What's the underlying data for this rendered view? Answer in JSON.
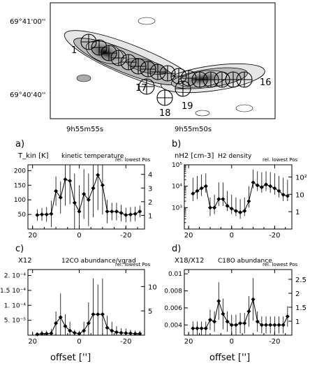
{
  "map": {
    "dec_labels": [
      "69°41'00''",
      "69°40'40''"
    ],
    "ra_labels": [
      "9h55m55s",
      "9h55m50s"
    ],
    "position_labels": [
      "1",
      "16",
      "17",
      "18",
      "19"
    ],
    "position_count": 19
  },
  "x_axis_title": "offset ['']",
  "chart_data": [
    {
      "id": "a",
      "type": "line",
      "panel_label": "a)",
      "ylabel": "T_kin [K]",
      "title": "kinetic temperature",
      "right_label": "rel. lowest Pos",
      "x": [
        18,
        16,
        14,
        12,
        10,
        8,
        6,
        4,
        2,
        0,
        -2,
        -4,
        -6,
        -8,
        -10,
        -12,
        -14,
        -16,
        -18,
        -20,
        -22,
        -24,
        -26
      ],
      "values": [
        48,
        50,
        50,
        52,
        130,
        108,
        170,
        165,
        90,
        60,
        120,
        100,
        140,
        185,
        150,
        60,
        60,
        60,
        55,
        48,
        50,
        52,
        60
      ],
      "errors": [
        20,
        22,
        25,
        45,
        50,
        55,
        90,
        80,
        100,
        90,
        85,
        90,
        100,
        120,
        100,
        40,
        30,
        30,
        28,
        25,
        25,
        25,
        20
      ],
      "xlim": [
        22,
        -28
      ],
      "ylim": [
        0,
        220
      ],
      "yticks": [
        50,
        100,
        150,
        200
      ],
      "xticks": [
        20,
        0,
        -20
      ],
      "right_ticks": [
        "1",
        "2",
        "3",
        "4"
      ]
    },
    {
      "id": "b",
      "type": "line",
      "panel_label": "b)",
      "ylabel": "nH2 [cm-3]",
      "title": "H2 density",
      "right_label": "rel. lowest Pos",
      "scale": "log",
      "x": [
        18,
        16,
        14,
        12,
        10,
        8,
        6,
        4,
        2,
        0,
        -2,
        -4,
        -6,
        -8,
        -10,
        -12,
        -14,
        -16,
        -18,
        -20,
        -22,
        -24,
        -26
      ],
      "values": [
        4500,
        6000,
        8000,
        10000,
        1000,
        1000,
        2500,
        2500,
        1200,
        900,
        700,
        600,
        700,
        2000,
        15000,
        11000,
        9000,
        12000,
        10000,
        8000,
        6000,
        4000,
        3500
      ],
      "err_lo": [
        2000,
        2500,
        3500,
        5000,
        400,
        500,
        1200,
        1200,
        700,
        500,
        400,
        300,
        400,
        1000,
        8000,
        6000,
        5000,
        6000,
        5000,
        4000,
        3000,
        2000,
        2000
      ],
      "err_hi": [
        25000,
        30000,
        35000,
        40000,
        3000,
        4000,
        15000,
        15000,
        6000,
        4000,
        3000,
        2500,
        3000,
        10000,
        60000,
        50000,
        45000,
        50000,
        45000,
        40000,
        30000,
        25000,
        20000
      ],
      "xlim": [
        22,
        -28
      ],
      "ylim": [
        100,
        100000
      ],
      "ytick_labels": [
        "10³",
        "10⁴",
        "10⁵"
      ],
      "xticks": [
        20,
        0,
        -20
      ],
      "right_ticks": [
        "1",
        "10",
        "10²"
      ]
    },
    {
      "id": "c",
      "type": "line",
      "panel_label": "c)",
      "ylabel": "X12",
      "title": "12CO abundance/vgrad",
      "right_label": "rel. lowest Pos",
      "x": [
        18,
        16,
        14,
        12,
        10,
        8,
        6,
        4,
        2,
        0,
        -2,
        -4,
        -6,
        -8,
        -10,
        -12,
        -14,
        -16,
        -18,
        -20,
        -22,
        -24,
        -26
      ],
      "values": [
        3e-06,
        5e-06,
        5e-06,
        6e-06,
        4e-05,
        6e-05,
        3e-05,
        1.5e-05,
        8e-06,
        5e-06,
        1.5e-05,
        4e-05,
        7e-05,
        7e-05,
        7e-05,
        2.5e-05,
        1.5e-05,
        1e-05,
        8e-06,
        7e-06,
        6e-06,
        5e-06,
        5e-06
      ],
      "errors": [
        5e-06,
        1e-05,
        1e-05,
        1.5e-05,
        4e-05,
        8e-05,
        4e-05,
        3e-05,
        1e-05,
        1e-05,
        3e-05,
        7e-05,
        0.00012,
        0.0001,
        0.00012,
        4e-05,
        3e-05,
        2e-05,
        1.5e-05,
        1.5e-05,
        1.2e-05,
        1e-05,
        1e-05
      ],
      "xlim": [
        22,
        -28
      ],
      "ylim": [
        0,
        0.00022
      ],
      "ytick_labels": [
        "5. 10⁻⁵",
        "1. 10⁻⁴",
        "1.5 10⁻⁴",
        "2. 10⁻⁴"
      ],
      "yticks": [
        5e-05,
        0.0001,
        0.00015,
        0.0002
      ],
      "xticks": [
        20,
        0,
        -20
      ],
      "right_ticks": [
        "5",
        "10"
      ]
    },
    {
      "id": "d",
      "type": "line",
      "panel_label": "d)",
      "ylabel": "X18/X12",
      "title": "C18O abundance",
      "right_label": "rel. lowest Pos",
      "x": [
        18,
        16,
        14,
        12,
        10,
        8,
        6,
        4,
        2,
        0,
        -2,
        -4,
        -6,
        -8,
        -10,
        -12,
        -14,
        -16,
        -18,
        -20,
        -22,
        -24,
        -26
      ],
      "values": [
        0.0036,
        0.0036,
        0.0036,
        0.0036,
        0.0046,
        0.0044,
        0.0068,
        0.0053,
        0.0044,
        0.004,
        0.004,
        0.0042,
        0.0042,
        0.0056,
        0.007,
        0.0044,
        0.004,
        0.004,
        0.004,
        0.004,
        0.004,
        0.004,
        0.005
      ],
      "errors": [
        0.0008,
        0.0008,
        0.0008,
        0.0008,
        0.0012,
        0.0012,
        0.0022,
        0.0018,
        0.0012,
        0.0012,
        0.0012,
        0.0012,
        0.0012,
        0.0018,
        0.0025,
        0.0012,
        0.001,
        0.001,
        0.001,
        0.001,
        0.001,
        0.001,
        0.0012
      ],
      "xlim": [
        22,
        -28
      ],
      "ylim": [
        0.0028,
        0.0105
      ],
      "yticks": [
        0.004,
        0.006,
        0.008,
        0.01
      ],
      "ytick_labels": [
        "0.004",
        "0.006",
        "0.008",
        "0.01"
      ],
      "xticks": [
        20,
        0,
        -20
      ],
      "right_ticks": [
        "1",
        "1.5",
        "2",
        "2.5"
      ]
    }
  ]
}
